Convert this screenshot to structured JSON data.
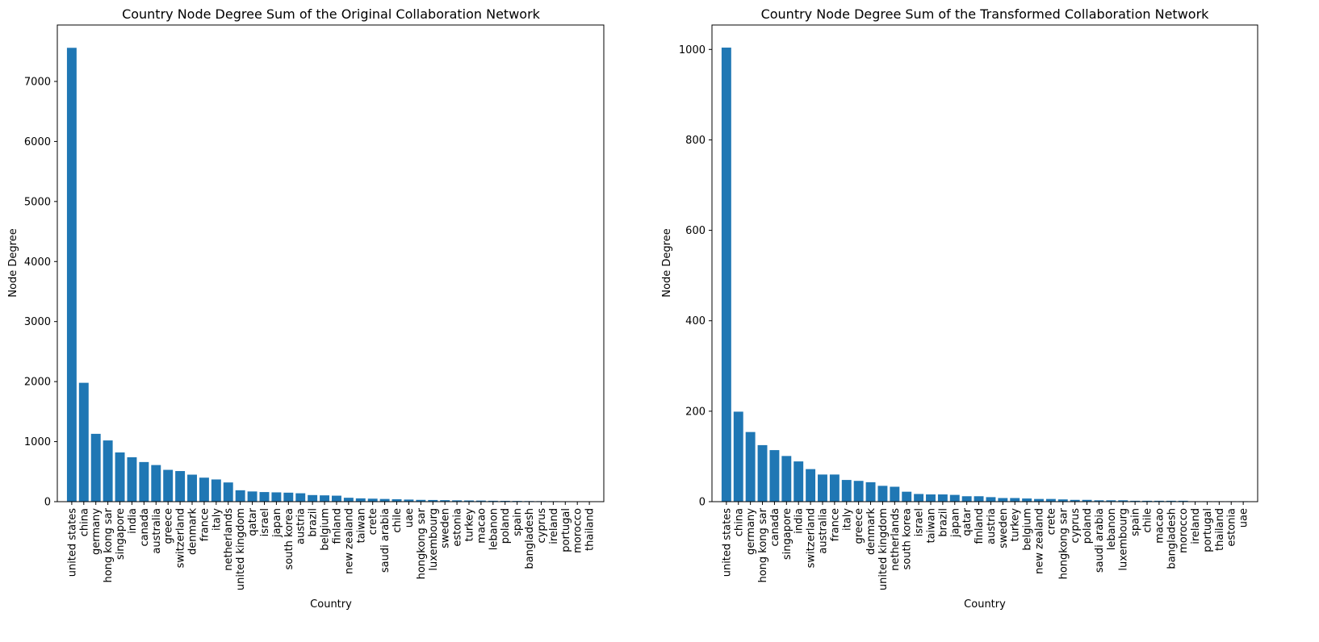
{
  "chart_data": [
    {
      "type": "bar",
      "title": "Country Node Degree Sum of the Original Collaboration Network",
      "xlabel": "Country",
      "ylabel": "Node Degree",
      "ylim": [
        0,
        7940
      ],
      "yticks": [
        0,
        1000,
        2000,
        3000,
        4000,
        5000,
        6000,
        7000
      ],
      "bar_color": "#1f77b4",
      "grid": false,
      "categories": [
        "united states",
        "china",
        "germany",
        "hong kong sar",
        "singapore",
        "india",
        "canada",
        "australia",
        "greece",
        "switzerland",
        "denmark",
        "france",
        "italy",
        "netherlands",
        "united kingdom",
        "qatar",
        "israel",
        "japan",
        "south korea",
        "austria",
        "brazil",
        "belgium",
        "finland",
        "new zealand",
        "taiwan",
        "crete",
        "saudi arabia",
        "chile",
        "uae",
        "hongkong sar",
        "luxembourg",
        "sweden",
        "estonia",
        "turkey",
        "macao",
        "lebanon",
        "poland",
        "spain",
        "bangladesh",
        "cyprus",
        "ireland",
        "portugal",
        "morocco",
        "thailand"
      ],
      "values": [
        7560,
        1980,
        1130,
        1020,
        820,
        740,
        660,
        610,
        530,
        510,
        450,
        400,
        370,
        320,
        190,
        170,
        160,
        155,
        150,
        140,
        110,
        105,
        100,
        65,
        55,
        50,
        45,
        40,
        35,
        30,
        28,
        25,
        22,
        20,
        18,
        15,
        14,
        12,
        10,
        9,
        8,
        7,
        5,
        4
      ]
    },
    {
      "type": "bar",
      "title": "Country Node Degree Sum of the Transformed Collaboration Network",
      "xlabel": "Country",
      "ylabel": "Node Degree",
      "ylim": [
        0,
        1054
      ],
      "yticks": [
        0,
        200,
        400,
        600,
        800,
        1000
      ],
      "bar_color": "#1f77b4",
      "grid": false,
      "categories": [
        "united states",
        "china",
        "germany",
        "hong kong sar",
        "canada",
        "singapore",
        "india",
        "switzerland",
        "australia",
        "france",
        "italy",
        "greece",
        "denmark",
        "united kingdom",
        "netherlands",
        "south korea",
        "israel",
        "taiwan",
        "brazil",
        "japan",
        "qatar",
        "finland",
        "austria",
        "sweden",
        "turkey",
        "belgium",
        "new zealand",
        "crete",
        "hongkong sar",
        "cyprus",
        "poland",
        "saudi arabia",
        "lebanon",
        "luxembourg",
        "spain",
        "chile",
        "macao",
        "bangladesh",
        "morocco",
        "ireland",
        "portugal",
        "thailand",
        "estonia",
        "uae"
      ],
      "values": [
        1004,
        199,
        154,
        125,
        114,
        101,
        89,
        72,
        60,
        60,
        48,
        46,
        43,
        35,
        33,
        22,
        17,
        16,
        16,
        15,
        12,
        12,
        10,
        8,
        8,
        7,
        6,
        6,
        5,
        4,
        4,
        3,
        3,
        3,
        2,
        2,
        2,
        2,
        2,
        1,
        1,
        1,
        1,
        1
      ]
    }
  ]
}
